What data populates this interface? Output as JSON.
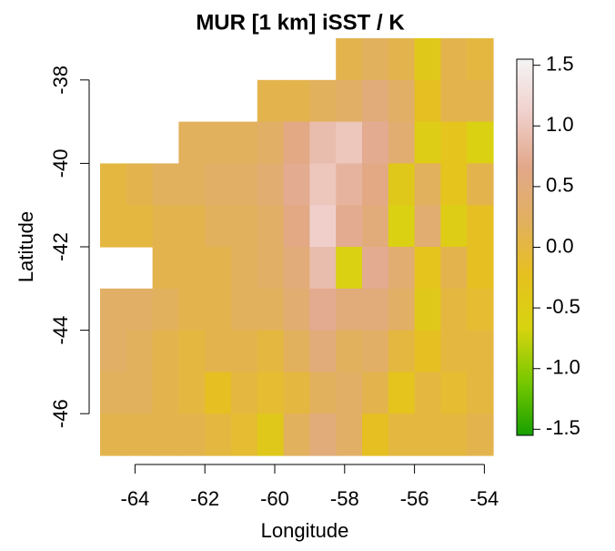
{
  "chart_data": {
    "type": "heatmap",
    "title": "MUR [1 km] iSST / K",
    "xlabel": "Longitude",
    "ylabel": "Latitude",
    "xlim": [
      -65,
      -53.75
    ],
    "ylim": [
      -47,
      -37
    ],
    "xticks": [
      -64,
      -62,
      -60,
      -58,
      -56,
      -54
    ],
    "yticks": [
      -38,
      -40,
      -42,
      -44,
      -46
    ],
    "values": [
      [
        null,
        null,
        null,
        null,
        null,
        null,
        null,
        null,
        null,
        0.1,
        0.2,
        0.1,
        -0.4,
        0.1,
        0.0
      ],
      [
        null,
        null,
        null,
        null,
        null,
        null,
        0.1,
        0.1,
        0.2,
        0.3,
        0.5,
        0.3,
        -0.2,
        0.1,
        0.1
      ],
      [
        null,
        null,
        null,
        0.2,
        0.2,
        0.2,
        0.3,
        0.6,
        0.9,
        1.0,
        0.7,
        0.4,
        -0.5,
        -0.3,
        -0.6
      ],
      [
        0.0,
        0.1,
        0.2,
        0.2,
        0.3,
        0.3,
        0.4,
        0.7,
        1.0,
        0.8,
        0.6,
        -0.4,
        0.2,
        -0.3,
        0.1
      ],
      [
        0.0,
        0.0,
        0.1,
        0.1,
        0.2,
        0.2,
        0.3,
        0.6,
        1.1,
        0.7,
        0.5,
        -0.6,
        0.4,
        -0.5,
        -0.2
      ],
      [
        null,
        null,
        0.1,
        0.1,
        0.1,
        0.2,
        0.3,
        0.5,
        0.9,
        -0.6,
        0.7,
        0.4,
        -0.3,
        0.1,
        -0.2
      ],
      [
        0.3,
        0.3,
        0.2,
        0.1,
        0.1,
        0.2,
        0.2,
        0.4,
        0.7,
        0.5,
        0.5,
        0.3,
        -0.4,
        0.0,
        -0.1
      ],
      [
        0.3,
        0.2,
        0.1,
        0.0,
        0.1,
        0.1,
        0.0,
        0.2,
        0.5,
        0.2,
        0.3,
        0.0,
        -0.2,
        0.0,
        0.0
      ],
      [
        0.2,
        0.2,
        0.1,
        0.0,
        -0.2,
        0.0,
        -0.1,
        0.0,
        0.2,
        0.3,
        0.1,
        -0.3,
        0.0,
        -0.1,
        0.0
      ],
      [
        0.1,
        0.1,
        0.1,
        0.1,
        0.0,
        -0.1,
        -0.4,
        0.2,
        0.5,
        0.3,
        -0.2,
        0.0,
        0.0,
        0.0,
        0.1
      ]
    ],
    "colorbar": {
      "clim": [
        -1.55,
        1.55
      ],
      "ticks": [
        1.5,
        {
          "value": 1,
          "label": "1.0"
        },
        0.5,
        {
          "value": 0,
          "label": "0.0"
        },
        -0.5,
        {
          "value": -1,
          "label": "-1.0"
        },
        -1.5
      ],
      "colors": [
        "#18a000",
        "#78c800",
        "#d8d410",
        "#e6c020",
        "#e2b060",
        "#e2a88a",
        "#f0d0cc",
        "#f4f4f4"
      ]
    }
  }
}
